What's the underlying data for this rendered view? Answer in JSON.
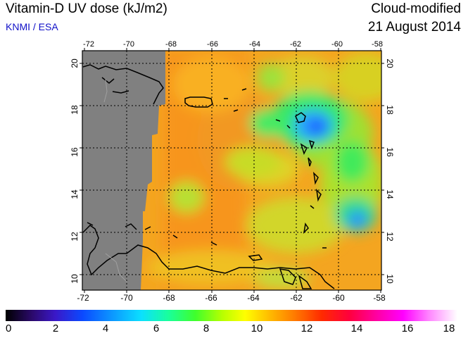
{
  "header": {
    "title": "Vitamin-D UV dose (kJ/m2)",
    "agency": "KNMI / ESA",
    "product": "Cloud-modified",
    "date": "21 August 2014"
  },
  "map": {
    "lon_ticks": [
      "-72",
      "-70",
      "-68",
      "-66",
      "-64",
      "-62",
      "-60",
      "-58"
    ],
    "lat_ticks": [
      "10",
      "12",
      "14",
      "16",
      "18",
      "20"
    ],
    "nodata_color": "#808080",
    "coast_color": "#000000"
  },
  "colorbar": {
    "ticks": [
      "0",
      "2",
      "4",
      "6",
      "8",
      "10",
      "12",
      "14",
      "16",
      "18"
    ]
  }
}
